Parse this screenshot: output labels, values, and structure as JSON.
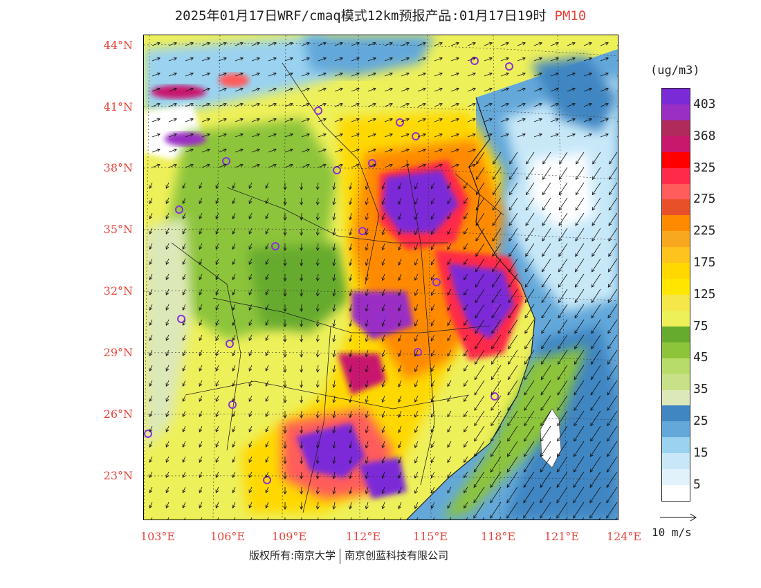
{
  "title": {
    "text": "2025年01月17日WRF/cmaq模式12km预报产品:01月17日19时",
    "pollutant": "PM10"
  },
  "map": {
    "lat_labels": [
      "44°N",
      "41°N",
      "38°N",
      "35°N",
      "32°N",
      "29°N",
      "26°N",
      "23°N"
    ],
    "lon_labels": [
      "103°E",
      "106°E",
      "109°E",
      "112°E",
      "115°E",
      "118°E",
      "121°E",
      "124°E"
    ],
    "extent": {
      "lon_min": 102.8,
      "lon_max": 124,
      "lat_min": 20.8,
      "lat_max": 44.5
    },
    "label_color": "#e8433a"
  },
  "colorbar": {
    "unit": "(ug/m3)",
    "ticks": [
      "403",
      "368",
      "325",
      "275",
      "225",
      "175",
      "125",
      "75",
      "45",
      "35",
      "25",
      "15",
      "5"
    ],
    "colors": [
      "#7b2ad8",
      "#9a2fc4",
      "#b02b5c",
      "#c8186e",
      "#ff0000",
      "#ff2a4a",
      "#ff5c5c",
      "#e8502a",
      "#ff8a00",
      "#f8a81e",
      "#ffc31e",
      "#ffd800",
      "#ffe600",
      "#f5e64a",
      "#eef05a",
      "#66aa2e",
      "#8cc43a",
      "#b8dc6a",
      "#c8e088",
      "#dde8b8",
      "#3f86c2",
      "#64a8da",
      "#9ad2f0",
      "#c8e8f8",
      "#e2f2fb",
      "#ffffff"
    ]
  },
  "wind_reference": {
    "label": "10 m/s"
  },
  "copyright": {
    "left": "版权所有:南京大学",
    "right": "南京创蓝科技有限公司"
  }
}
